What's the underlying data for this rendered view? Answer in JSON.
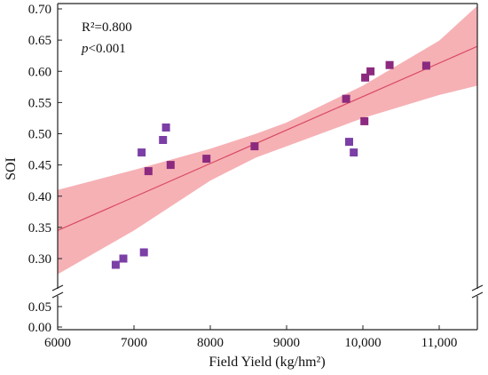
{
  "chart_data": {
    "type": "scatter",
    "title": "",
    "xlabel": "Field Yield (kg/hm²)",
    "ylabel": "SOI",
    "xlim": [
      6000,
      11500
    ],
    "ylim_upper": [
      0.25,
      0.7
    ],
    "ylim_lower": [
      0.0,
      0.075
    ],
    "x_ticks": [
      {
        "value": 6000,
        "label": "6000"
      },
      {
        "value": 7000,
        "label": "7000"
      },
      {
        "value": 8000,
        "label": "8000"
      },
      {
        "value": 9000,
        "label": "9000"
      },
      {
        "value": 10000,
        "label": "10,000"
      },
      {
        "value": 11000,
        "label": "11,000"
      }
    ],
    "y_ticks_upper": [
      {
        "value": 0.3,
        "label": "0.30"
      },
      {
        "value": 0.35,
        "label": "0.35"
      },
      {
        "value": 0.4,
        "label": "0.40"
      },
      {
        "value": 0.45,
        "label": "0.45"
      },
      {
        "value": 0.5,
        "label": "0.50"
      },
      {
        "value": 0.55,
        "label": "0.55"
      },
      {
        "value": 0.6,
        "label": "0.60"
      },
      {
        "value": 0.65,
        "label": "0.65"
      },
      {
        "value": 0.7,
        "label": "0.70"
      }
    ],
    "y_ticks_lower": [
      {
        "value": 0.0,
        "label": "0.00"
      },
      {
        "value": 0.05,
        "label": "0.05"
      }
    ],
    "points": [
      {
        "x": 6760,
        "y": 0.29,
        "color": "#7b3fa6"
      },
      {
        "x": 6860,
        "y": 0.3,
        "color": "#7b3fa6"
      },
      {
        "x": 7100,
        "y": 0.47,
        "color": "#7b3fa6"
      },
      {
        "x": 7130,
        "y": 0.31,
        "color": "#7b3fa6"
      },
      {
        "x": 7190,
        "y": 0.44,
        "color": "#8b2a7e"
      },
      {
        "x": 7380,
        "y": 0.49,
        "color": "#7b3fa6"
      },
      {
        "x": 7420,
        "y": 0.51,
        "color": "#7b3fa6"
      },
      {
        "x": 7480,
        "y": 0.45,
        "color": "#8b2a7e"
      },
      {
        "x": 7950,
        "y": 0.46,
        "color": "#8b2a7e"
      },
      {
        "x": 8580,
        "y": 0.48,
        "color": "#8b2a7e"
      },
      {
        "x": 9780,
        "y": 0.556,
        "color": "#8b2a7e"
      },
      {
        "x": 9820,
        "y": 0.487,
        "color": "#7b3fa6"
      },
      {
        "x": 9880,
        "y": 0.47,
        "color": "#7b3fa6"
      },
      {
        "x": 10020,
        "y": 0.52,
        "color": "#8b2a7e"
      },
      {
        "x": 10030,
        "y": 0.59,
        "color": "#8b2a7e"
      },
      {
        "x": 10100,
        "y": 0.6,
        "color": "#8b2a7e"
      },
      {
        "x": 10350,
        "y": 0.61,
        "color": "#8b2a7e"
      },
      {
        "x": 10830,
        "y": 0.609,
        "color": "#8b2a7e"
      }
    ],
    "fit_line": {
      "x": [
        6000,
        11500
      ],
      "y": [
        0.345,
        0.64
      ],
      "color": "#d94a63"
    },
    "confidence_band": {
      "x": [
        6000,
        7000,
        8000,
        8600,
        9000,
        10000,
        11000,
        11500
      ],
      "lower": [
        0.275,
        0.345,
        0.425,
        0.462,
        0.48,
        0.525,
        0.562,
        0.577
      ],
      "upper": [
        0.41,
        0.442,
        0.476,
        0.5,
        0.518,
        0.577,
        0.649,
        0.705
      ],
      "color": "#f5a3a8"
    },
    "annotation": {
      "r2_label": "R²=0.800",
      "p_italic": "p",
      "p_rest": "<0.001"
    },
    "grid": false,
    "axis_break": true
  }
}
